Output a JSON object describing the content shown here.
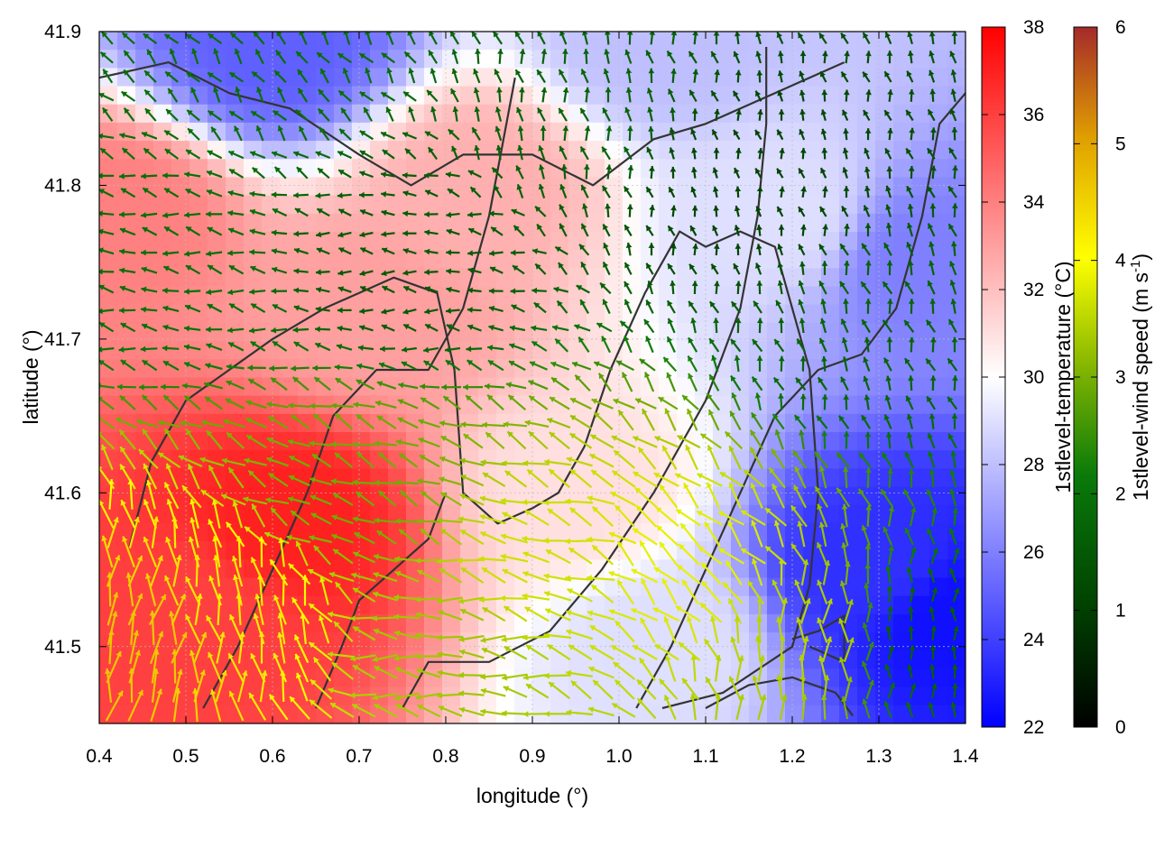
{
  "chart_data": {
    "type": "heatmap",
    "title": "",
    "xlabel": "longitude (°)",
    "ylabel": "latitude (°)",
    "xlim": [
      0.4,
      1.4
    ],
    "ylim": [
      41.45,
      41.9
    ],
    "x_ticks": [
      0.4,
      0.5,
      0.6,
      0.7,
      0.8,
      0.9,
      1.0,
      1.1,
      1.2,
      1.3,
      1.4
    ],
    "x_tick_labels": [
      "0.4",
      "0.5",
      "0.6",
      "0.7",
      "0.8",
      "0.9",
      "1.0",
      "1.1",
      "1.2",
      "1.3",
      "1.4"
    ],
    "y_ticks": [
      41.5,
      41.6,
      41.7,
      41.8,
      41.9
    ],
    "y_tick_labels": [
      "41.5",
      "41.6",
      "41.7",
      "41.8",
      "41.9"
    ],
    "grid": true,
    "temperature_scale": {
      "label": "1stlevel-temperature (°C)",
      "range": [
        22,
        38
      ],
      "ticks": [
        22,
        24,
        26,
        28,
        30,
        32,
        34,
        36,
        38
      ],
      "tick_labels": [
        "22",
        "24",
        "26",
        "28",
        "30",
        "32",
        "34",
        "36",
        "38"
      ],
      "colors": [
        "#0000ff",
        "#ffffff",
        "#ff0000"
      ]
    },
    "wind_speed_scale": {
      "label_main": "1stlevel-wind speed (m s",
      "label_sup": "-1",
      "label_end": ")",
      "range": [
        0,
        6
      ],
      "ticks": [
        0,
        1,
        2,
        3,
        4,
        5,
        6
      ],
      "tick_labels": [
        "0",
        "1",
        "2",
        "3",
        "4",
        "5",
        "6"
      ],
      "colors": [
        "#000000",
        "#004400",
        "#0a7a0a",
        "#88b800",
        "#ffff00",
        "#e0a000",
        "#a52a2a"
      ]
    },
    "temperature_regions": [
      {
        "lon": 0.62,
        "lat": 41.58,
        "value": 37
      },
      {
        "lon": 0.52,
        "lat": 41.52,
        "value": 36
      },
      {
        "lon": 0.42,
        "lat": 41.78,
        "value": 34
      },
      {
        "lon": 0.72,
        "lat": 41.72,
        "value": 33
      },
      {
        "lon": 0.84,
        "lat": 41.8,
        "value": 32.5
      },
      {
        "lon": 0.95,
        "lat": 41.6,
        "value": 31
      },
      {
        "lon": 1.18,
        "lat": 41.78,
        "value": 29
      },
      {
        "lon": 1.05,
        "lat": 41.5,
        "value": 29
      },
      {
        "lon": 1.3,
        "lat": 41.55,
        "value": 23.5
      },
      {
        "lon": 1.38,
        "lat": 41.52,
        "value": 22.5
      },
      {
        "lon": 0.6,
        "lat": 41.89,
        "value": 25
      },
      {
        "lon": 1.05,
        "lat": 41.89,
        "value": 28
      },
      {
        "lon": 1.35,
        "lat": 41.75,
        "value": 26
      }
    ],
    "wind_regions": [
      {
        "lon": 0.55,
        "lat": 41.52,
        "u": -0.2,
        "v": 1.0,
        "speed": 4.2
      },
      {
        "lon": 0.45,
        "lat": 41.5,
        "u": 0.2,
        "v": 1.0,
        "speed": 4.6
      },
      {
        "lon": 0.8,
        "lat": 41.5,
        "u": -1.0,
        "v": 0.1,
        "speed": 3.2
      },
      {
        "lon": 0.92,
        "lat": 41.55,
        "u": -1.0,
        "v": 0.3,
        "speed": 3.6
      },
      {
        "lon": 1.08,
        "lat": 41.55,
        "u": -0.7,
        "v": 0.7,
        "speed": 3.8
      },
      {
        "lon": 1.22,
        "lat": 41.5,
        "u": 0.0,
        "v": 1.0,
        "speed": 3.4
      },
      {
        "lon": 1.35,
        "lat": 41.5,
        "u": 0.0,
        "v": 1.0,
        "speed": 1.5
      },
      {
        "lon": 1.3,
        "lat": 41.7,
        "u": -0.3,
        "v": 1.0,
        "speed": 1.6
      },
      {
        "lon": 1.15,
        "lat": 41.8,
        "u": -0.2,
        "v": 1.0,
        "speed": 1.0
      },
      {
        "lon": 0.75,
        "lat": 41.75,
        "u": -1.0,
        "v": 0.1,
        "speed": 1.4
      },
      {
        "lon": 0.5,
        "lat": 41.75,
        "u": -1.0,
        "v": 0.2,
        "speed": 1.8
      },
      {
        "lon": 0.6,
        "lat": 41.88,
        "u": -0.6,
        "v": 0.8,
        "speed": 1.8
      },
      {
        "lon": 0.7,
        "lat": 41.6,
        "u": -1.0,
        "v": 0.4,
        "speed": 2.8
      },
      {
        "lon": 0.95,
        "lat": 41.85,
        "u": -0.2,
        "v": 1.0,
        "speed": 1.6
      }
    ],
    "contours": [
      [
        [
          0.435,
          41.565
        ],
        [
          0.46,
          41.62
        ],
        [
          0.5,
          41.66
        ],
        [
          0.6,
          41.7
        ],
        [
          0.66,
          41.72
        ],
        [
          0.74,
          41.74
        ],
        [
          0.79,
          41.73
        ],
        [
          0.81,
          41.68
        ],
        [
          0.82,
          41.6
        ],
        [
          0.86,
          41.58
        ],
        [
          0.9,
          41.59
        ],
        [
          0.93,
          41.6
        ],
        [
          0.96,
          41.63
        ],
        [
          0.99,
          41.68
        ],
        [
          1.03,
          41.73
        ],
        [
          1.07,
          41.77
        ],
        [
          1.1,
          41.76
        ],
        [
          1.14,
          41.77
        ],
        [
          1.18,
          41.76
        ],
        [
          1.2,
          41.72
        ],
        [
          1.22,
          41.68
        ],
        [
          1.23,
          41.6
        ],
        [
          1.22,
          41.54
        ],
        [
          1.2,
          41.5
        ],
        [
          1.12,
          41.47
        ],
        [
          1.05,
          41.46
        ]
      ],
      [
        [
          0.52,
          41.46
        ],
        [
          0.56,
          41.5
        ],
        [
          0.6,
          41.55
        ],
        [
          0.64,
          41.6
        ],
        [
          0.67,
          41.65
        ],
        [
          0.72,
          41.68
        ],
        [
          0.78,
          41.68
        ],
        [
          0.82,
          41.72
        ],
        [
          0.85,
          41.78
        ],
        [
          0.87,
          41.84
        ],
        [
          0.88,
          41.87
        ]
      ],
      [
        [
          0.4,
          41.87
        ],
        [
          0.48,
          41.88
        ],
        [
          0.55,
          41.86
        ],
        [
          0.62,
          41.85
        ],
        [
          0.7,
          41.82
        ],
        [
          0.76,
          41.8
        ],
        [
          0.82,
          41.82
        ],
        [
          0.9,
          41.82
        ],
        [
          0.97,
          41.8
        ],
        [
          1.04,
          41.83
        ],
        [
          1.1,
          41.84
        ],
        [
          1.18,
          41.86
        ],
        [
          1.26,
          41.88
        ]
      ],
      [
        [
          0.75,
          41.46
        ],
        [
          0.78,
          41.49
        ],
        [
          0.85,
          41.49
        ],
        [
          0.92,
          41.51
        ],
        [
          0.98,
          41.55
        ],
        [
          1.04,
          41.6
        ],
        [
          1.1,
          41.66
        ],
        [
          1.14,
          41.72
        ],
        [
          1.16,
          41.78
        ],
        [
          1.17,
          41.84
        ],
        [
          1.17,
          41.89
        ]
      ],
      [
        [
          1.02,
          41.46
        ],
        [
          1.06,
          41.5
        ],
        [
          1.1,
          41.55
        ],
        [
          1.14,
          41.6
        ],
        [
          1.18,
          41.65
        ],
        [
          1.23,
          41.68
        ],
        [
          1.28,
          41.69
        ],
        [
          1.32,
          41.72
        ],
        [
          1.35,
          41.78
        ],
        [
          1.37,
          41.84
        ],
        [
          1.4,
          41.86
        ]
      ],
      [
        [
          1.2,
          41.505
        ],
        [
          1.23,
          41.51
        ],
        [
          1.26,
          41.52
        ],
        [
          1.26,
          41.49
        ],
        [
          1.22,
          41.5
        ]
      ],
      [
        [
          1.1,
          41.46
        ],
        [
          1.15,
          41.475
        ],
        [
          1.2,
          41.48
        ],
        [
          1.25,
          41.47
        ],
        [
          1.27,
          41.455
        ]
      ],
      [
        [
          0.65,
          41.46
        ],
        [
          0.68,
          41.5
        ],
        [
          0.7,
          41.53
        ],
        [
          0.74,
          41.55
        ],
        [
          0.78,
          41.57
        ],
        [
          0.8,
          41.6
        ]
      ]
    ]
  }
}
